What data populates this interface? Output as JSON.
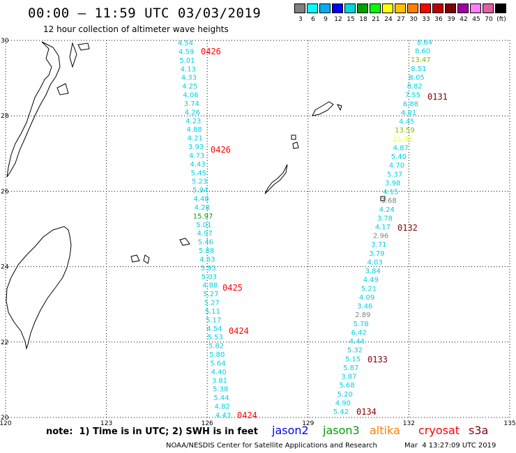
{
  "header": {
    "title": "00:00 – 11:59 UTC 03/03/2019",
    "subtitle": "12 hour collection of altimeter wave heights"
  },
  "color_scale": {
    "colors": [
      "#808080",
      "#00ffff",
      "#00b0f0",
      "#0000ff",
      "#00d8d8",
      "#00a000",
      "#00ff00",
      "#ffff00",
      "#ffc000",
      "#ff8000",
      "#ff0000",
      "#c00000",
      "#800000",
      "#a000a0",
      "#ff80ff",
      "#e060a0",
      "#000000"
    ],
    "labels": [
      "3",
      "6",
      "9",
      "12",
      "15",
      "18",
      "21",
      "24",
      "27",
      "30",
      "33",
      "36",
      "39",
      "42",
      "45",
      "70",
      "(ft)"
    ]
  },
  "map": {
    "lon_range": [
      120,
      135
    ],
    "lat_range": [
      20,
      30
    ],
    "lon_ticks": [
      "120",
      "123",
      "126",
      "129",
      "132",
      "135"
    ],
    "lat_ticks": [
      "30",
      "28",
      "26",
      "24",
      "22",
      "20"
    ],
    "grid": true,
    "track1": {
      "values": [
        "4.54",
        "4.59",
        "5.01",
        "4.13",
        "4.33",
        "4.25",
        "4.06",
        "3.74",
        "4.26",
        "4.23",
        "4.88",
        "4.21",
        "3.93",
        "4.73",
        "4.43",
        "5.45",
        "5.23",
        "5.94",
        "4.48",
        "4.28",
        "15.97",
        "5.01",
        "4.97",
        "5.46",
        "5.88",
        "4.83",
        "5.93",
        "5.03",
        "4.88",
        "5.27",
        "5.27",
        "5.11",
        "5.17",
        "4.54",
        "5.53",
        "5.82",
        "5.80",
        "5.64",
        "4.40",
        "3.81",
        "5.38",
        "5.44",
        "4.82",
        "4.43"
      ],
      "value_colors": {
        "15.97": "#00a000"
      }
    },
    "track2": {
      "values": [
        "8.64",
        "8.60",
        "13.47",
        "8.51",
        "8.05",
        "8.82",
        "7.55",
        "6.88",
        "4.81",
        "4.45",
        "13.59",
        "21.38",
        "4.87",
        "5.40",
        "4.70",
        "5.37",
        "3.98",
        "4.15",
        "3.68",
        "4.24",
        "3.78",
        "4.17",
        "2.96",
        "3.71",
        "3.79",
        "4.03",
        "3.84",
        "4.49",
        "5.21",
        "4.09",
        "3.46",
        "2.89",
        "5.78",
        "6.42",
        "4.44",
        "5.32",
        "5.15",
        "5.87",
        "3.87",
        "5.68",
        "5.20",
        "4.90",
        "5.42"
      ],
      "value_colors": {
        "13.47": "#80c000",
        "13.59": "#80c000",
        "21.38": "#ffff00",
        "3.68": "#808080",
        "2.96": "#808080",
        "2.89": "#808080"
      }
    },
    "pass_labels": [
      {
        "text": "0426",
        "color": "#ff0000"
      },
      {
        "text": "0426",
        "color": "#ff0000"
      },
      {
        "text": "0425",
        "color": "#ff0000"
      },
      {
        "text": "0424",
        "color": "#ff0000"
      },
      {
        "text": "0424",
        "color": "#ff0000"
      },
      {
        "text": "0131",
        "color": "#800000"
      },
      {
        "text": "0132",
        "color": "#800000"
      },
      {
        "text": "0133",
        "color": "#800000"
      },
      {
        "text": "0134",
        "color": "#800000"
      }
    ]
  },
  "note": "note:  1) Time is in UTC; 2) SWH is in feet",
  "satellites": [
    {
      "name": "jason2",
      "color": "#0000ff"
    },
    {
      "name": "jason3",
      "color": "#00a000"
    },
    {
      "name": "altika",
      "color": "#ff8000"
    },
    {
      "name": "cryosat",
      "color": "#ff0000"
    },
    {
      "name": "s3a",
      "color": "#800000"
    }
  ],
  "footer": {
    "credit": "NOAA/NESDIS Center for Satellite Applications and Research",
    "timestamp": "Mar  4 13:27:09 UTC 2019"
  }
}
